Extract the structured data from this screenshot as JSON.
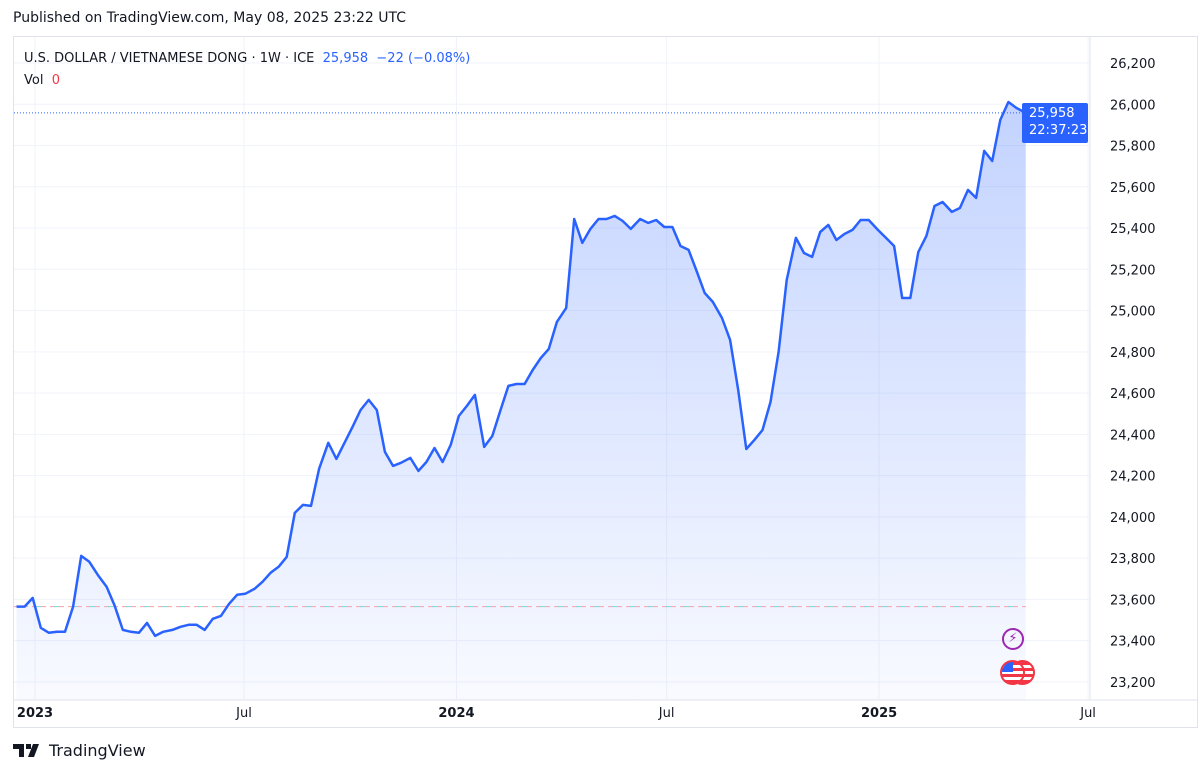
{
  "published": "Published on TradingView.com, May 08, 2025 23:22 UTC",
  "legend": {
    "symbol": "U.S. DOLLAR / VIETNAMESE DONG · 1W · ICE",
    "price": "25,958",
    "change": "−22 (−0.08%)",
    "vol_label": "Vol",
    "vol_value": "0"
  },
  "price_label": {
    "price": "25,958",
    "countdown": "22:37:23"
  },
  "footer": {
    "brand": "TradingView"
  },
  "colors": {
    "line": "#2962ff",
    "accent": "#2962ff",
    "down": "#f23645"
  },
  "icons": [
    "lightning-event-icon",
    "us-flag-event-icon"
  ],
  "chart_data": {
    "type": "area",
    "interval": "1W",
    "start": "2022-12-16",
    "end": "2025-05-08",
    "ylim": [
      23150,
      26250
    ],
    "yticks": [
      "23,200",
      "23,400",
      "23,600",
      "23,800",
      "24,000",
      "24,200",
      "24,400",
      "24,600",
      "24,800",
      "25,000",
      "25,200",
      "25,400",
      "25,600",
      "25,800",
      "26,000",
      "26,200"
    ],
    "xticks": [
      {
        "label": "2023",
        "date": "2023-01-01",
        "bold": true
      },
      {
        "label": "Jul",
        "date": "2023-07-01"
      },
      {
        "label": "2024",
        "date": "2024-01-01",
        "bold": true
      },
      {
        "label": "Jul",
        "date": "2024-07-01"
      },
      {
        "label": "2025",
        "date": "2025-01-01",
        "bold": true
      },
      {
        "label": "Jul",
        "date": "2025-07-01"
      }
    ],
    "reference_line": 23565,
    "last": 25958,
    "grid": true,
    "values": [
      23565,
      23565,
      23607,
      23462,
      23438,
      23443,
      23443,
      23565,
      23811,
      23782,
      23714,
      23661,
      23569,
      23452,
      23443,
      23438,
      23486,
      23423,
      23443,
      23452,
      23467,
      23477,
      23477,
      23452,
      23506,
      23520,
      23578,
      23622,
      23627,
      23651,
      23685,
      23729,
      23758,
      23806,
      24019,
      24058,
      24053,
      24233,
      24359,
      24281,
      24359,
      24436,
      24518,
      24567,
      24518,
      24315,
      24247,
      24262,
      24286,
      24223,
      24266,
      24334,
      24266,
      24349,
      24489,
      24538,
      24591,
      24339,
      24392,
      24514,
      24635,
      24644,
      24644,
      24712,
      24770,
      24814,
      24945,
      25013,
      25444,
      25328,
      25396,
      25444,
      25444,
      25459,
      25434,
      25396,
      25444,
      25425,
      25439,
      25405,
      25405,
      25313,
      25294,
      25192,
      25085,
      25042,
      24964,
      24858,
      24615,
      24329,
      24373,
      24421,
      24557,
      24800,
      25148,
      25352,
      25279,
      25260,
      25381,
      25415,
      25342,
      25371,
      25391,
      25439,
      25439,
      25391,
      25352,
      25313,
      25061,
      25061,
      25284,
      25362,
      25507,
      25526,
      25478,
      25497,
      25585,
      25546,
      25774,
      25725,
      25924,
      26011,
      25982,
      25958
    ]
  }
}
